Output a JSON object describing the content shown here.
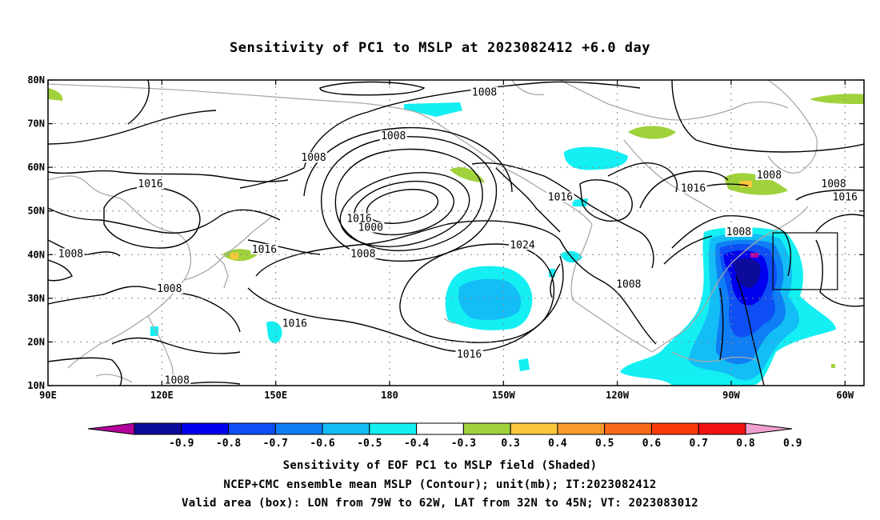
{
  "title": "Sensitivity of PC1 to MSLP at 2023082412 +6.0 day",
  "map": {
    "lon_labels": [
      "90E",
      "120E",
      "150E",
      "180",
      "150W",
      "120W",
      "90W",
      "60W"
    ],
    "lat_labels": [
      "10N",
      "20N",
      "30N",
      "40N",
      "50N",
      "60N",
      "70N",
      "80N"
    ],
    "lon_range": [
      90,
      305
    ],
    "lat_range": [
      10,
      80
    ],
    "contour_labels": [
      {
        "text": "1008",
        "lon": 205,
        "lat": 77
      },
      {
        "text": "1008",
        "lon": 181,
        "lat": 67
      },
      {
        "text": "1008",
        "lon": 160,
        "lat": 62
      },
      {
        "text": "1016",
        "lon": 117,
        "lat": 56
      },
      {
        "text": "1016",
        "lon": 260,
        "lat": 55
      },
      {
        "text": "1016",
        "lon": 300,
        "lat": 53
      },
      {
        "text": "1016",
        "lon": 225,
        "lat": 53
      },
      {
        "text": "1016",
        "lon": 172,
        "lat": 48
      },
      {
        "text": "1008",
        "lon": 280,
        "lat": 58
      },
      {
        "text": "1000",
        "lon": 175,
        "lat": 46
      },
      {
        "text": "1008",
        "lon": 272,
        "lat": 45
      },
      {
        "text": "1008",
        "lon": 297,
        "lat": 56
      },
      {
        "text": "1008",
        "lon": 96,
        "lat": 40
      },
      {
        "text": "1016",
        "lon": 147,
        "lat": 41
      },
      {
        "text": "1008",
        "lon": 173,
        "lat": 40
      },
      {
        "text": "1024",
        "lon": 215,
        "lat": 42
      },
      {
        "text": "1008",
        "lon": 243,
        "lat": 33
      },
      {
        "text": "1008",
        "lon": 122,
        "lat": 32
      },
      {
        "text": "1016",
        "lon": 155,
        "lat": 24
      },
      {
        "text": "1016",
        "lon": 201,
        "lat": 17
      },
      {
        "text": "1008",
        "lon": 124,
        "lat": 11
      }
    ],
    "valid_box": {
      "lon_west": 281,
      "lon_east": 298,
      "lat_south": 32,
      "lat_north": 45
    }
  },
  "colorbar": {
    "labels": [
      "-0.9",
      "-0.8",
      "-0.7",
      "-0.6",
      "-0.5",
      "-0.4",
      "-0.3",
      "0.3",
      "0.4",
      "0.5",
      "0.6",
      "0.7",
      "0.8",
      "0.9"
    ],
    "colors": [
      "#b4009b",
      "#0d0b9a",
      "#0000ee",
      "#0d4ff5",
      "#0f7ff5",
      "#13bdf5",
      "#13eff2",
      "#ffffff",
      "#a0d23c",
      "#fbc83c",
      "#fb9a2e",
      "#fb6a19",
      "#fb3a0c",
      "#f21212",
      "#f0a0d0"
    ]
  },
  "captions": [
    "Sensitivity of EOF PC1 to MSLP field (Shaded)",
    "NCEP+CMC ensemble mean MSLP (Contour); unit(mb); IT:2023082412",
    "Valid area (box): LON from 79W to 62W, LAT from 32N to 45N; VT: 2023083012"
  ]
}
